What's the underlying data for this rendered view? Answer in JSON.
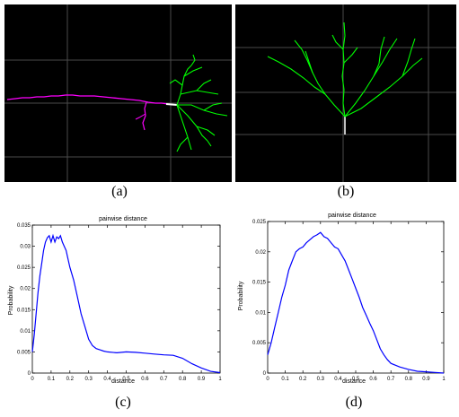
{
  "figure": {
    "captions": {
      "a": "(a)",
      "b": "(b)",
      "c": "(c)",
      "d": "(d)"
    },
    "colors": {
      "background": "#000000",
      "grid": "#4a4a4a",
      "axon": "#ff00ff",
      "dendrite": "#00ff00",
      "soma": "#ffffff",
      "curve": "#0000ff"
    }
  },
  "chart_data": [
    {
      "type": "line",
      "title": "pairwise distance",
      "xlabel": "distance",
      "ylabel": "Probability",
      "xlim": [
        0,
        1
      ],
      "ylim": [
        0,
        0.035
      ],
      "xticks": [
        "0",
        "0.1",
        "0.2",
        "0.3",
        "0.4",
        "0.5",
        "0.6",
        "0.7",
        "0.8",
        "0.9",
        "1"
      ],
      "yticks": [
        "0",
        "0.005",
        "0.01",
        "0.015",
        "0.02",
        "0.025",
        "0.03",
        "0.035"
      ],
      "grid": false,
      "series": [
        {
          "color": "#0000ff",
          "x": [
            0,
            0.01,
            0.02,
            0.03,
            0.04,
            0.05,
            0.06,
            0.07,
            0.08,
            0.09,
            0.1,
            0.11,
            0.12,
            0.13,
            0.14,
            0.15,
            0.16,
            0.17,
            0.18,
            0.19,
            0.2,
            0.22,
            0.24,
            0.26,
            0.28,
            0.3,
            0.32,
            0.34,
            0.36,
            0.38,
            0.4,
            0.45,
            0.5,
            0.55,
            0.6,
            0.65,
            0.7,
            0.75,
            0.8,
            0.85,
            0.9,
            0.95,
            1.0
          ],
          "y": [
            0.005,
            0.009,
            0.014,
            0.019,
            0.023,
            0.026,
            0.029,
            0.031,
            0.032,
            0.0325,
            0.031,
            0.0325,
            0.031,
            0.0322,
            0.0318,
            0.0325,
            0.031,
            0.03,
            0.029,
            0.027,
            0.025,
            0.022,
            0.018,
            0.014,
            0.011,
            0.008,
            0.0065,
            0.0058,
            0.0055,
            0.0052,
            0.005,
            0.0048,
            0.005,
            0.0049,
            0.0047,
            0.0045,
            0.0043,
            0.0042,
            0.0035,
            0.0022,
            0.0012,
            0.0004,
            0.0001
          ]
        }
      ]
    },
    {
      "type": "line",
      "title": "pairwise distance",
      "xlabel": "distance",
      "ylabel": "Probability",
      "xlim": [
        0,
        1
      ],
      "ylim": [
        0,
        0.025
      ],
      "xticks": [
        "0",
        "0.1",
        "0.2",
        "0.3",
        "0.4",
        "0.5",
        "0.6",
        "0.7",
        "0.8",
        "0.9",
        "1"
      ],
      "yticks": [
        "0",
        "0.005",
        "0.01",
        "0.015",
        "0.02",
        "0.025"
      ],
      "grid": false,
      "series": [
        {
          "color": "#0000ff",
          "x": [
            0,
            0.02,
            0.04,
            0.06,
            0.08,
            0.1,
            0.12,
            0.14,
            0.16,
            0.18,
            0.2,
            0.22,
            0.24,
            0.26,
            0.28,
            0.3,
            0.32,
            0.34,
            0.36,
            0.38,
            0.4,
            0.42,
            0.44,
            0.46,
            0.48,
            0.5,
            0.52,
            0.54,
            0.56,
            0.58,
            0.6,
            0.62,
            0.64,
            0.66,
            0.68,
            0.7,
            0.75,
            0.8,
            0.85,
            0.9,
            0.95,
            1.0
          ],
          "y": [
            0.003,
            0.005,
            0.0075,
            0.01,
            0.0125,
            0.0145,
            0.017,
            0.0185,
            0.02,
            0.0205,
            0.0208,
            0.0215,
            0.022,
            0.0225,
            0.0228,
            0.0232,
            0.0225,
            0.0222,
            0.0215,
            0.0208,
            0.0205,
            0.0195,
            0.0185,
            0.017,
            0.0155,
            0.014,
            0.0125,
            0.0108,
            0.0095,
            0.0082,
            0.007,
            0.0055,
            0.004,
            0.003,
            0.0022,
            0.0016,
            0.001,
            0.0006,
            0.0003,
            0.0002,
            0.0001,
            0.0
          ]
        }
      ]
    }
  ]
}
